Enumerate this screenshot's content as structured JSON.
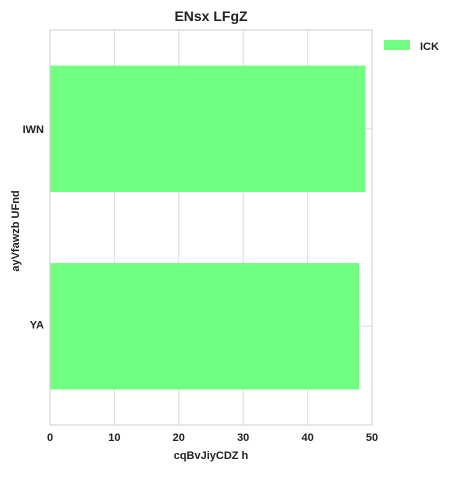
{
  "chart_data": {
    "type": "bar",
    "orientation": "horizontal",
    "title": "ENsx LFgZ",
    "xlabel": "cqBvJiyCDZ h",
    "ylabel": "ayVfawzb UFnd",
    "categories": [
      "IWN",
      "YA"
    ],
    "category_font": [
      "normal",
      "small"
    ],
    "series": [
      {
        "name": "ICK",
        "values": [
          49,
          48
        ],
        "color": "#70ff80"
      }
    ],
    "xlim": [
      0,
      50
    ],
    "xticks": [
      0,
      10,
      20,
      30,
      40,
      50
    ],
    "grid": true,
    "legend_position": "outside-top-right"
  }
}
